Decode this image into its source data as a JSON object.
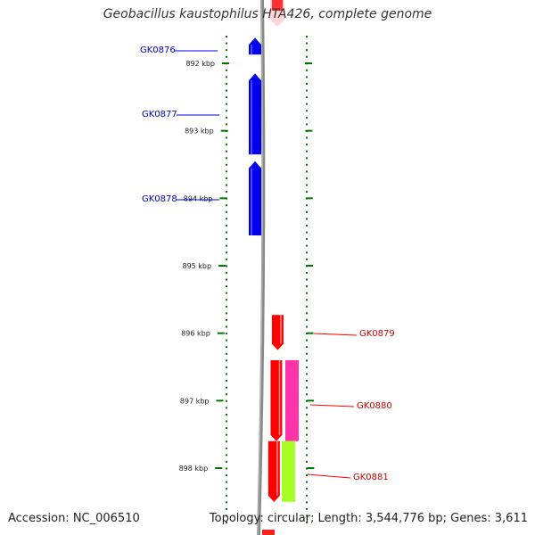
{
  "title": "Geobacillus kaustophilus HTA426, complete genome",
  "accession_text": "Accession: NC_006510",
  "topology_text": "Topology: circular; Length: 3,544,776 bp; Genes: 3,611",
  "scale": {
    "unit": "kbp",
    "ticks": [
      {
        "kbp": 892,
        "label": "892 kbp"
      },
      {
        "kbp": 893,
        "label": "893 kbp"
      },
      {
        "kbp": 894,
        "label": "894 kbp"
      },
      {
        "kbp": 895,
        "label": "895 kbp"
      },
      {
        "kbp": 896,
        "label": "896 kbp"
      },
      {
        "kbp": 897,
        "label": "897 kbp"
      },
      {
        "kbp": 898,
        "label": "898 kbp"
      }
    ]
  },
  "colors": {
    "reverse_strand": "#0000ee",
    "forward_strand": "#ff0000",
    "gc_high": "#ff33aa",
    "gc_low": "#aaff22",
    "tick": "#007700",
    "backbone": "#888888"
  },
  "genes": [
    {
      "id": "GK0876",
      "strand": "reverse",
      "start_kbp": 891.62,
      "end_kbp": 891.87
    },
    {
      "id": "GK0877",
      "strand": "reverse",
      "start_kbp": 892.15,
      "end_kbp": 893.35
    },
    {
      "id": "GK0878",
      "strand": "reverse",
      "start_kbp": 893.45,
      "end_kbp": 894.55
    },
    {
      "id": "GK0879",
      "strand": "forward",
      "start_kbp": 895.73,
      "end_kbp": 896.25
    },
    {
      "id": "GK0880",
      "strand": "forward",
      "start_kbp": 896.4,
      "end_kbp": 897.6
    },
    {
      "id": "GK0881",
      "strand": "forward",
      "start_kbp": 897.6,
      "end_kbp": 898.5
    }
  ]
}
